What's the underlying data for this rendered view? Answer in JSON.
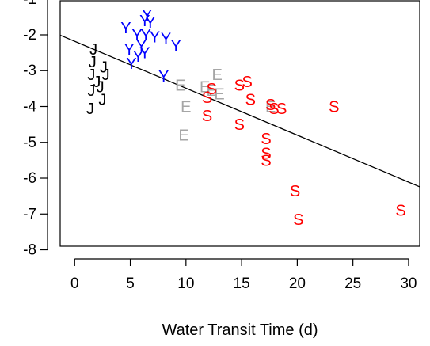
{
  "chart_data": {
    "type": "scatter",
    "title": "",
    "xlabel": "Water Transit Time (d)",
    "ylabel": "",
    "xlim": [
      -1.3,
      31.0
    ],
    "ylim": [
      -7.9,
      -1.05
    ],
    "x_ticks": [
      0,
      5,
      10,
      15,
      20,
      25,
      30
    ],
    "y_ticks": [
      -1,
      -2,
      -3,
      -4,
      -5,
      -6,
      -7,
      -8
    ],
    "grid": false,
    "legend": "none",
    "colors": {
      "J": "#000000",
      "Y": "#0000ff",
      "E": "#a6a6a6",
      "S": "#ff0000",
      "line": "#000000"
    },
    "series": [
      {
        "marker": "J",
        "points": [
          [
            1.7,
            -2.4
          ],
          [
            1.6,
            -2.75
          ],
          [
            1.5,
            -3.1
          ],
          [
            2.6,
            -2.9
          ],
          [
            2.8,
            -3.1
          ],
          [
            2.0,
            -3.3
          ],
          [
            2.3,
            -3.45
          ],
          [
            1.5,
            -3.55
          ],
          [
            2.5,
            -3.8
          ],
          [
            1.4,
            -4.05
          ]
        ]
      },
      {
        "marker": "Y",
        "points": [
          [
            4.6,
            -1.8
          ],
          [
            6.5,
            -1.45
          ],
          [
            6.3,
            -1.6
          ],
          [
            6.8,
            -1.65
          ],
          [
            5.6,
            -2.0
          ],
          [
            6.4,
            -2.0
          ],
          [
            7.2,
            -2.05
          ],
          [
            8.2,
            -2.1
          ],
          [
            9.1,
            -2.3
          ],
          [
            4.9,
            -2.4
          ],
          [
            6.0,
            -2.3
          ],
          [
            5.7,
            -2.6
          ],
          [
            6.3,
            -2.5
          ],
          [
            5.1,
            -2.8
          ],
          [
            8.0,
            -3.15
          ]
        ]
      },
      {
        "marker": "E",
        "points": [
          [
            12.8,
            -3.1
          ],
          [
            9.5,
            -3.4
          ],
          [
            11.7,
            -3.45
          ],
          [
            12.3,
            -3.55
          ],
          [
            13.0,
            -3.65
          ],
          [
            10.0,
            -4.0
          ],
          [
            17.6,
            -4.0
          ],
          [
            9.8,
            -4.8
          ]
        ]
      },
      {
        "marker": "S",
        "points": [
          [
            15.5,
            -3.3
          ],
          [
            14.8,
            -3.4
          ],
          [
            12.3,
            -3.5
          ],
          [
            11.9,
            -3.75
          ],
          [
            15.8,
            -3.8
          ],
          [
            17.6,
            -3.95
          ],
          [
            23.3,
            -4.0
          ],
          [
            17.9,
            -4.05
          ],
          [
            18.6,
            -4.05
          ],
          [
            11.9,
            -4.25
          ],
          [
            14.8,
            -4.5
          ],
          [
            17.2,
            -4.9
          ],
          [
            17.2,
            -5.3
          ],
          [
            17.2,
            -5.5
          ],
          [
            19.8,
            -6.35
          ],
          [
            29.3,
            -6.9
          ],
          [
            20.1,
            -7.15
          ]
        ]
      }
    ],
    "fit_line": {
      "intercept": -2.18,
      "slope": -0.131
    }
  }
}
